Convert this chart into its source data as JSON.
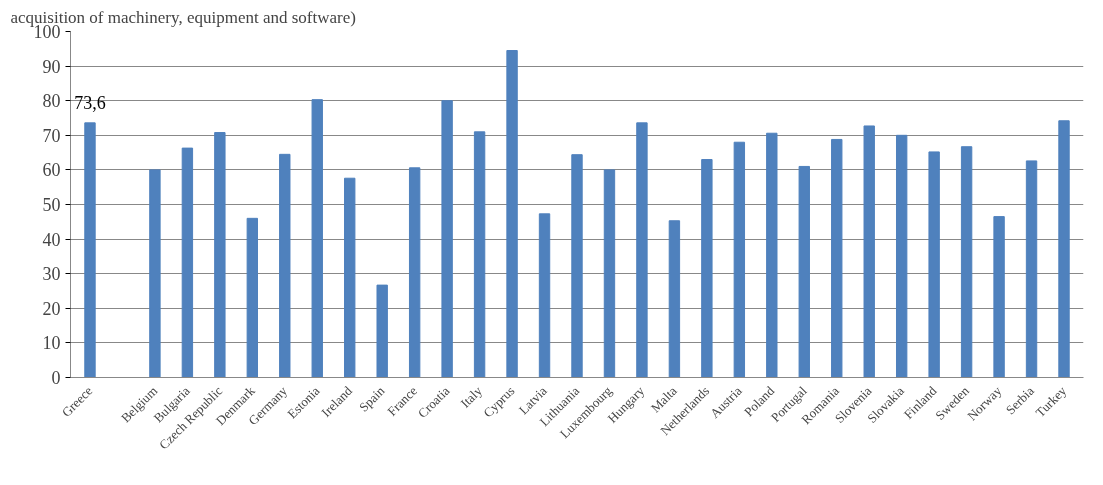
{
  "chart_data": {
    "type": "bar",
    "title": "acquisition of machinery, equipment and software)",
    "categories": [
      "Greece",
      null,
      "Belgium",
      "Bulgaria",
      "Czech Republic",
      "Denmark",
      "Germany",
      "Estonia",
      "Ireland",
      "Spain",
      "France",
      "Croatia",
      "Italy",
      "Cyprus",
      "Latvia",
      "Lithuania",
      "Luxembourg",
      "Hungary",
      "Malta",
      "Netherlands",
      "Austria",
      "Poland",
      "Portugal",
      "Romania",
      "Slovenia",
      "Slovakia",
      "Finland",
      "Sweden",
      "Norway",
      "Serbia",
      "Turkey"
    ],
    "values": [
      73.6,
      null,
      60,
      66.3,
      70.8,
      46,
      64.5,
      80.3,
      57.6,
      26.7,
      60.6,
      80,
      71,
      94.5,
      47.3,
      64.4,
      60,
      73.6,
      45.3,
      63,
      68,
      70.6,
      61,
      68.8,
      72.7,
      70,
      65.2,
      66.7,
      46.5,
      62.6,
      74.2
    ],
    "value_labels": [
      "73,6",
      null,
      null,
      null,
      null,
      null,
      null,
      null,
      null,
      null,
      null,
      null,
      null,
      null,
      null,
      null,
      null,
      null,
      null,
      null,
      null,
      null,
      null,
      null,
      null,
      null,
      null,
      null,
      null,
      null,
      null
    ],
    "color": "#4f81bd",
    "ylim": [
      0,
      100
    ],
    "yticks": [
      0,
      10,
      20,
      30,
      40,
      50,
      60,
      70,
      80,
      90,
      100
    ],
    "grid": "y"
  }
}
